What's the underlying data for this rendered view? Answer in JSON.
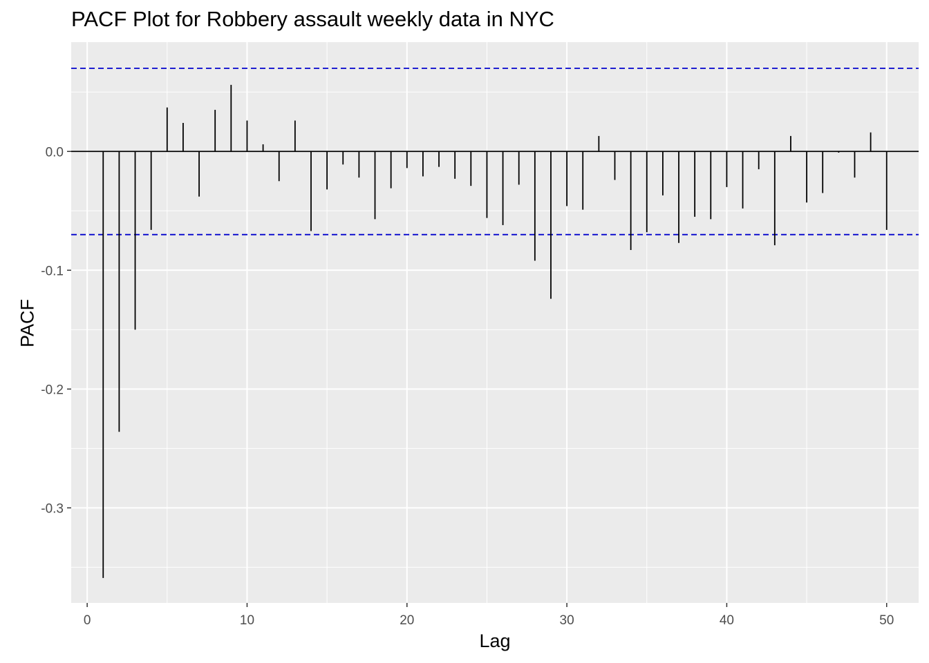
{
  "chart_data": {
    "type": "bar",
    "title": "PACF Plot for Robbery assault weekly data in NYC",
    "xlabel": "Lag",
    "ylabel": "PACF",
    "xlim": [
      -1,
      52
    ],
    "ylim": [
      -0.38,
      0.092
    ],
    "x_ticks": [
      0,
      10,
      20,
      30,
      40,
      50
    ],
    "x_tick_labels": [
      "0",
      "10",
      "20",
      "30",
      "40",
      "50"
    ],
    "y_ticks": [
      0.0,
      -0.1,
      -0.2,
      -0.3
    ],
    "y_tick_labels": [
      "0.0",
      "-0.1",
      "-0.2",
      "-0.3"
    ],
    "confidence_bounds": [
      0.07,
      -0.07
    ],
    "grid": true,
    "colors": {
      "panel": "#ebebeb",
      "grid": "#ffffff",
      "bars": "#000000",
      "bounds": "#0000cc"
    },
    "x": [
      1,
      2,
      3,
      4,
      5,
      6,
      7,
      8,
      9,
      10,
      11,
      12,
      13,
      14,
      15,
      16,
      17,
      18,
      19,
      20,
      21,
      22,
      23,
      24,
      25,
      26,
      27,
      28,
      29,
      30,
      31,
      32,
      33,
      34,
      35,
      36,
      37,
      38,
      39,
      40,
      41,
      42,
      43,
      44,
      45,
      46,
      47,
      48,
      49,
      50
    ],
    "values": [
      -0.359,
      -0.236,
      -0.15,
      -0.066,
      0.037,
      0.024,
      -0.038,
      0.035,
      0.056,
      0.026,
      0.006,
      -0.025,
      0.026,
      -0.067,
      -0.032,
      -0.011,
      -0.022,
      -0.057,
      -0.031,
      -0.014,
      -0.021,
      -0.013,
      -0.023,
      -0.029,
      -0.056,
      -0.062,
      -0.028,
      -0.092,
      -0.124,
      -0.046,
      -0.049,
      0.013,
      -0.024,
      -0.083,
      -0.068,
      -0.037,
      -0.077,
      -0.055,
      -0.057,
      -0.03,
      -0.048,
      -0.015,
      -0.079,
      0.013,
      -0.043,
      -0.035,
      -0.001,
      -0.022,
      0.016,
      -0.066
    ]
  }
}
